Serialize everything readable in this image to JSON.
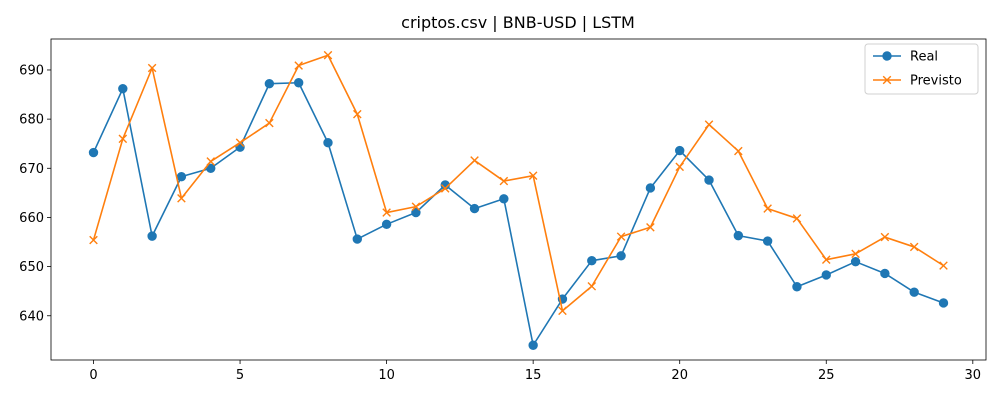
{
  "chart_data": {
    "type": "line",
    "title": "criptos.csv | BNB-USD | LSTM",
    "xlabel": "",
    "ylabel": "",
    "xlim": [
      -1.45,
      30.45
    ],
    "ylim": [
      631.0,
      696.3
    ],
    "x_ticks": [
      0,
      5,
      10,
      15,
      20,
      25,
      30
    ],
    "y_ticks": [
      640,
      650,
      660,
      670,
      680,
      690
    ],
    "grid": false,
    "legend_position": "top-right",
    "x": [
      0,
      1,
      2,
      3,
      4,
      5,
      6,
      7,
      8,
      9,
      10,
      11,
      12,
      13,
      14,
      15,
      16,
      17,
      18,
      19,
      20,
      21,
      22,
      23,
      24,
      25,
      26,
      27,
      28,
      29
    ],
    "series": [
      {
        "name": "Real",
        "color": "#1f77b4",
        "marker": "circle",
        "values": [
          673.2,
          686.2,
          656.2,
          668.3,
          670.0,
          674.3,
          687.2,
          687.4,
          675.2,
          655.6,
          658.6,
          661.0,
          666.6,
          661.8,
          663.8,
          634.0,
          643.4,
          651.2,
          652.2,
          666.0,
          673.6,
          667.6,
          656.3,
          655.2,
          645.9,
          648.3,
          651.0,
          648.6,
          644.8,
          642.6
        ]
      },
      {
        "name": "Previsto",
        "color": "#ff7f0e",
        "marker": "x",
        "values": [
          655.4,
          676.0,
          690.4,
          663.9,
          671.4,
          675.2,
          679.2,
          690.9,
          693.0,
          681.0,
          661.0,
          662.2,
          665.9,
          671.6,
          667.4,
          668.5,
          641.0,
          646.0,
          656.1,
          658.0,
          670.3,
          678.9,
          673.5,
          661.8,
          659.8,
          651.4,
          652.6,
          656.0,
          654.0,
          650.2
        ]
      }
    ]
  }
}
